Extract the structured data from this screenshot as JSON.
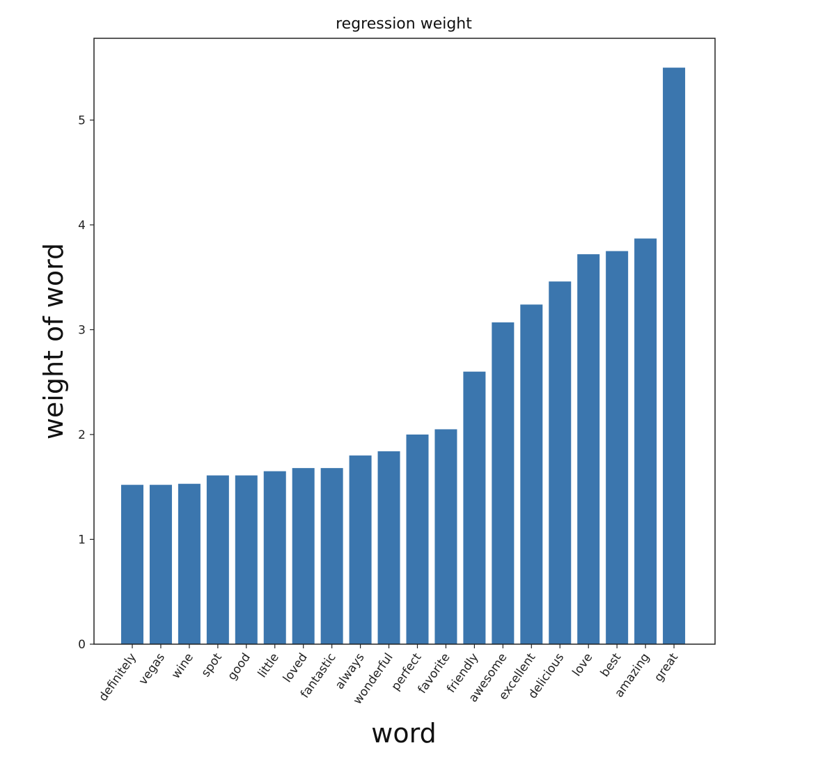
{
  "chart_data": {
    "type": "bar",
    "title": "regression weight",
    "xlabel": "word",
    "ylabel": "weight of word",
    "categories": [
      "definitely",
      "vegas",
      "wine",
      "spot",
      "good",
      "little",
      "loved",
      "fantastic",
      "always",
      "wonderful",
      "perfect",
      "favorite",
      "friendly",
      "awesome",
      "excellent",
      "delicious",
      "love",
      "best",
      "amazing",
      "great"
    ],
    "values": [
      1.52,
      1.52,
      1.53,
      1.61,
      1.61,
      1.65,
      1.68,
      1.68,
      1.8,
      1.84,
      2.0,
      2.05,
      2.6,
      3.07,
      3.24,
      3.46,
      3.72,
      3.75,
      3.87,
      5.5
    ],
    "ylim": [
      0,
      5.78
    ],
    "yticks": [
      0,
      1,
      2,
      3,
      4,
      5
    ],
    "bar_color": "#3b76ae",
    "grid": false,
    "legend": "none"
  }
}
